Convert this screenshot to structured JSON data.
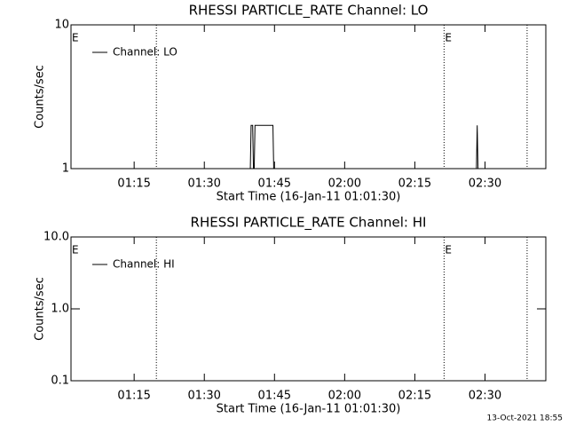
{
  "chart_data": [
    {
      "type": "line",
      "title": "RHESSI PARTICLE_RATE Channel: LO",
      "xlabel": "Start Time (16-Jan-11 01:01:30)",
      "ylabel": "Counts/sec",
      "x": [
        "01:01:30",
        "01:39:50",
        "01:40:00",
        "01:40:20",
        "01:40:30",
        "01:40:40",
        "01:40:50",
        "01:44:40",
        "01:44:50",
        "02:28:10",
        "02:28:20",
        "02:28:30",
        "02:43:00"
      ],
      "series": [
        {
          "name": "Channel: LO",
          "color": "#000000",
          "values": [
            1,
            1,
            2,
            2,
            1,
            1,
            2,
            2,
            1,
            1,
            2,
            1,
            1
          ]
        }
      ],
      "xlim": [
        "01:01:30",
        "02:43:00"
      ],
      "ylim": [
        1,
        10
      ],
      "log_y": true,
      "xticks": [
        {
          "value": "01:15:00",
          "label": "01:15"
        },
        {
          "value": "01:30:00",
          "label": "01:30"
        },
        {
          "value": "01:45:00",
          "label": "01:45"
        },
        {
          "value": "02:00:00",
          "label": "02:00"
        },
        {
          "value": "02:15:00",
          "label": "02:15"
        },
        {
          "value": "02:30:00",
          "label": "02:30"
        }
      ],
      "yticks": [
        1,
        10
      ],
      "vlines": [
        "01:19:45",
        "02:21:15",
        "02:39:00"
      ],
      "annotations": [
        {
          "x": "01:01:30",
          "label": "E"
        },
        {
          "x": "02:21:15",
          "label": "E"
        }
      ],
      "legend": "upper left"
    },
    {
      "type": "line",
      "title": "RHESSI PARTICLE_RATE Channel: HI",
      "xlabel": "Start Time (16-Jan-11 01:01:30)",
      "ylabel": "Counts/sec",
      "x": [
        "01:01:30",
        "02:43:00"
      ],
      "series": [
        {
          "name": "Channel: HI",
          "color": "#000000",
          "values": [
            0.1,
            0.1
          ]
        }
      ],
      "xlim": [
        "01:01:30",
        "02:43:00"
      ],
      "ylim": [
        0.1,
        10
      ],
      "log_y": true,
      "xticks": [
        {
          "value": "01:15:00",
          "label": "01:15"
        },
        {
          "value": "01:30:00",
          "label": "01:30"
        },
        {
          "value": "01:45:00",
          "label": "01:45"
        },
        {
          "value": "02:00:00",
          "label": "02:00"
        },
        {
          "value": "02:15:00",
          "label": "02:15"
        },
        {
          "value": "02:30:00",
          "label": "02:30"
        }
      ],
      "yticks": [
        0.1,
        {
          "value": 1,
          "label": "1.0"
        },
        {
          "value": 10,
          "label": "10.0"
        }
      ],
      "vlines": [
        "01:19:45",
        "02:21:15",
        "02:39:00"
      ],
      "annotations": [
        {
          "x": "01:01:30",
          "label": "E"
        },
        {
          "x": "02:21:15",
          "label": "E"
        }
      ],
      "legend": "upper left"
    }
  ],
  "footer": "13-Oct-2021 18:55"
}
